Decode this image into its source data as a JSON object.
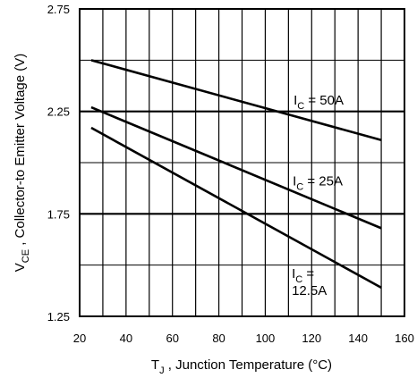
{
  "chart_data": {
    "type": "line",
    "xlabel": {
      "main": "T",
      "sub": "J",
      "rest": " , Junction Temperature (°C)"
    },
    "ylabel": {
      "main": "V",
      "sub": "CE",
      "rest": " , Collector-to Emitter Voltage (V)"
    },
    "xlim": [
      20,
      160
    ],
    "ylim": [
      1.25,
      2.75
    ],
    "x_ticks": [
      20,
      40,
      60,
      80,
      100,
      120,
      140,
      160
    ],
    "x_tick_labels": [
      "20",
      "40",
      "60",
      "80",
      "100",
      "120",
      "140",
      "160"
    ],
    "y_ticks": [
      1.25,
      1.75,
      2.25,
      2.75
    ],
    "y_tick_labels": [
      "1.25",
      "1.75",
      "2.25",
      "2.75"
    ],
    "grid": true,
    "series": [
      {
        "name": "IC = 50A",
        "label": {
          "main": "I",
          "sub": "C",
          "lines": [
            " = 50A"
          ]
        },
        "x": [
          25,
          150
        ],
        "y": [
          2.5,
          2.11
        ],
        "label_anchor": "right"
      },
      {
        "name": "IC = 25A",
        "label": {
          "main": "I",
          "sub": "C",
          "lines": [
            " = 25A"
          ]
        },
        "x": [
          25,
          150
        ],
        "y": [
          2.27,
          1.68
        ],
        "label_anchor": "right"
      },
      {
        "name": "IC = 12.5A",
        "label": {
          "main": "I",
          "sub": "C",
          "lines": [
            " = ",
            "12.5A"
          ]
        },
        "x": [
          25,
          150
        ],
        "y": [
          2.17,
          1.39
        ],
        "label_anchor": "lower-right"
      }
    ]
  }
}
